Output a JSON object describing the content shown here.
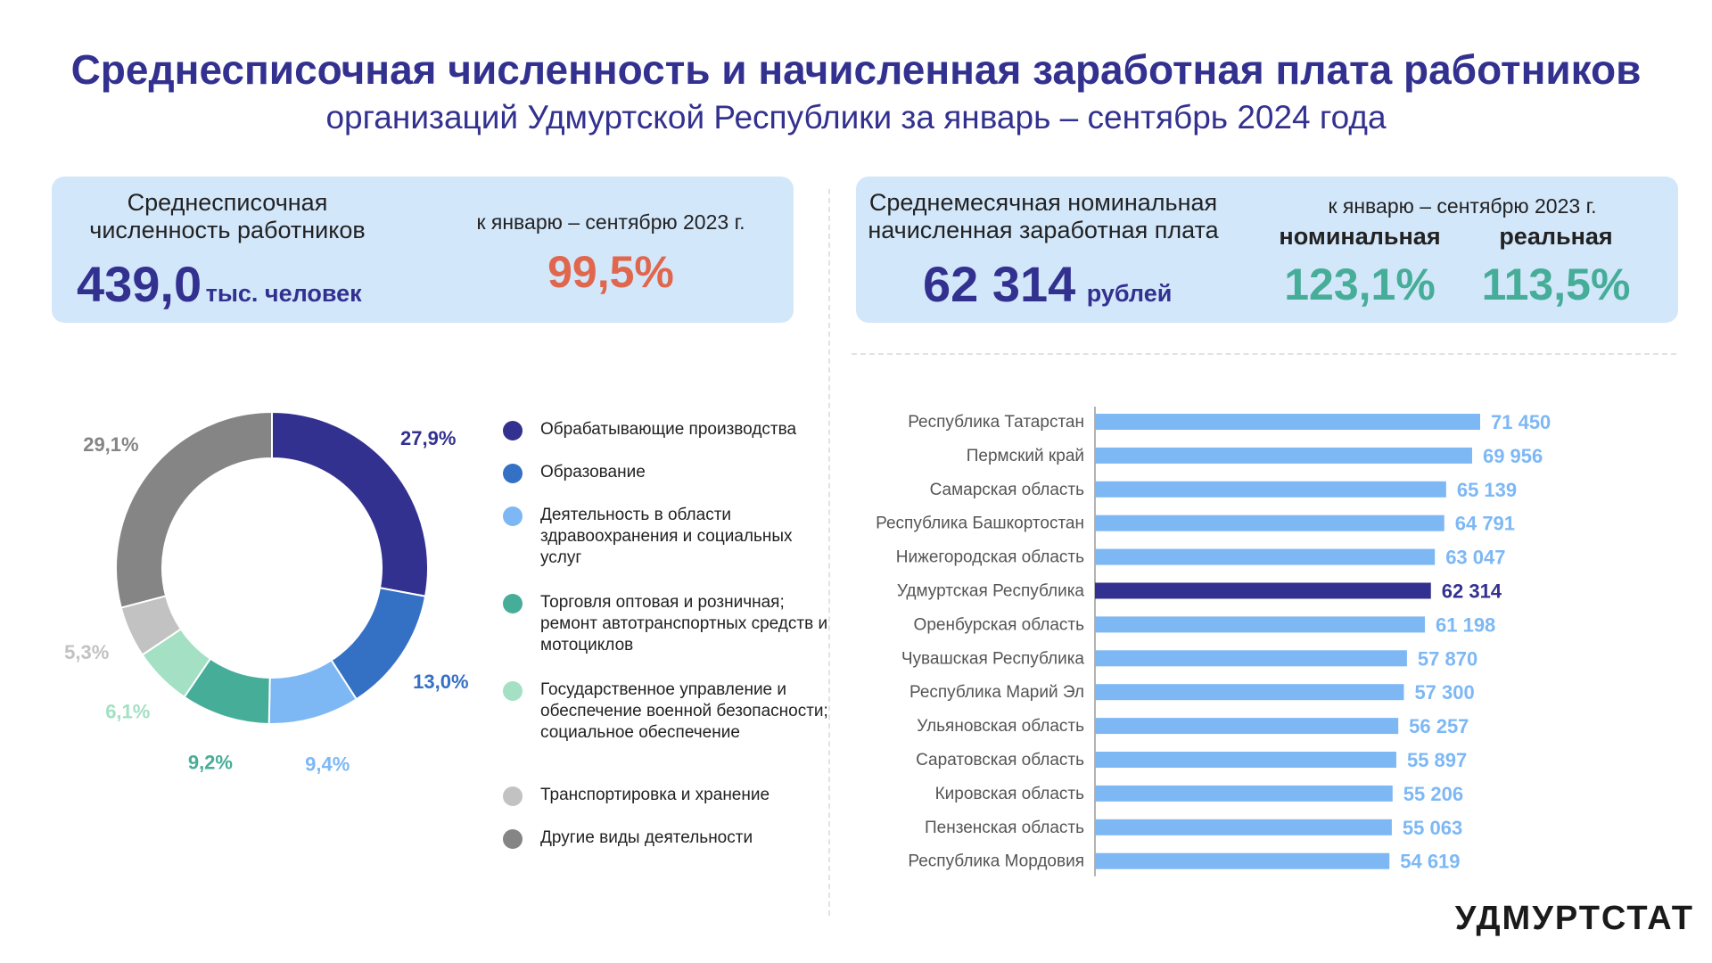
{
  "header": {
    "title": "Среднесписочная численность и начисленная заработная плата работников",
    "subtitle": "организаций Удмуртской Республики за январь – сентябрь 2024 года"
  },
  "employment_card": {
    "label_line1": "Среднесписочная",
    "label_line2": "численность работников",
    "value": "439,0",
    "unit": "тыс. человек",
    "compare_label": "к январю – сентябрю 2023 г.",
    "compare_value": "99,5%"
  },
  "salary_card": {
    "label_line1": "Среднемесячная номинальная",
    "label_line2": "начисленная заработная плата",
    "value": "62 314",
    "unit": "рублей",
    "compare_label": "к январю – сентябрю 2023 г.",
    "nominal_label": "номинальная",
    "nominal_value": "123,1%",
    "real_label": "реальная",
    "real_value": "113,5%"
  },
  "logo": "УДМУРТСТАТ",
  "colors": {
    "accent": "#33318f",
    "compare_red": "#e0674e",
    "compare_green": "#46ad98",
    "card_bg": "#d3e7fb",
    "bar": "#7db8f5",
    "bar_highlight": "#33318f"
  },
  "chart_data": [
    {
      "type": "pie",
      "variant": "donut",
      "legend_position": "right",
      "categories": [
        "Обрабатывающие производства",
        "Образование",
        "Деятельность в области здравоохранения и социальных услуг",
        "Торговля оптовая и розничная; ремонт автотранспортных средств и мотоциклов",
        "Государственное управление и обеспечение военной безопасности; социальное обеспечение",
        "Транспортировка и хранение",
        "Другие виды деятельности"
      ],
      "values": [
        27.9,
        13.0,
        9.4,
        9.2,
        6.1,
        5.3,
        29.1
      ],
      "labels": [
        "27,9%",
        "13,0%",
        "9,4%",
        "9,2%",
        "6,1%",
        "5,3%",
        "29,1%"
      ],
      "colors": [
        "#33318f",
        "#3470c4",
        "#7db8f5",
        "#46ad98",
        "#a3e0c4",
        "#c2c2c2",
        "#858585"
      ]
    },
    {
      "type": "bar",
      "orientation": "horizontal",
      "categories": [
        "Республика Татарстан",
        "Пермский край",
        "Самарская область",
        "Республика Башкортостан",
        "Нижегородская область",
        "Удмуртская Республика",
        "Оренбурская область",
        "Чувашская Республика",
        "Республика Марий Эл",
        "Ульяновская область",
        "Саратовская область",
        "Кировская область",
        "Пензенская область",
        "Республика Мордовия"
      ],
      "values": [
        71450,
        69956,
        65139,
        64791,
        63047,
        62314,
        61198,
        57870,
        57300,
        56257,
        55897,
        55206,
        55063,
        54619
      ],
      "labels": [
        "71 450",
        "69 956",
        "65 139",
        "64 791",
        "63 047",
        "62 314",
        "61 198",
        "57 870",
        "57 300",
        "56 257",
        "55 897",
        "55 206",
        "55 063",
        "54 619"
      ],
      "highlight": "Удмуртская Республика",
      "xlim": [
        0,
        71450
      ]
    }
  ]
}
